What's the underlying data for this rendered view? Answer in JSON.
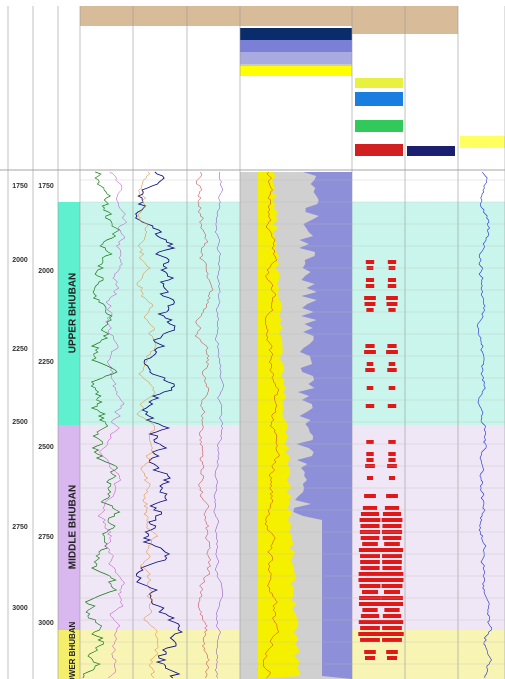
{
  "depth_track": {
    "md_labels": [
      "1750",
      "2000",
      "2250",
      "2500",
      "2750",
      "3000"
    ],
    "tvdss_labels": [
      "1750",
      "2000",
      "2250",
      "2500",
      "2750",
      "3000"
    ]
  },
  "zones": [
    {
      "name": "UPPER BHUBAN"
    },
    {
      "name": "MIDDLE BHUBAN"
    },
    {
      "name": "LOWER BHUBAN"
    }
  ]
}
